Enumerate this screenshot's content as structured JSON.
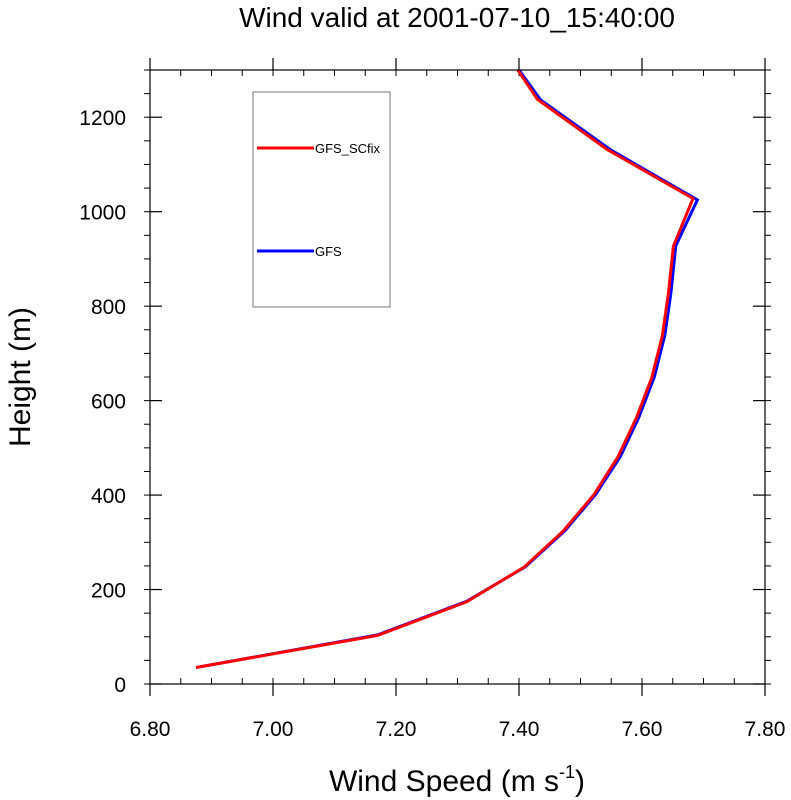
{
  "chart_data": {
    "type": "line",
    "title": "Wind valid at 2001-07-10_15:40:00",
    "xlabel": "Wind Speed (m s",
    "xlabel_sup": "-1",
    "xlabel_tail": ")",
    "ylabel": "Height (m)",
    "xlim": [
      6.8,
      7.8
    ],
    "ylim": [
      0,
      1300
    ],
    "xticks": [
      6.8,
      7.0,
      7.2,
      7.4,
      7.6,
      7.8
    ],
    "xtick_labels": [
      "6.80",
      "7.00",
      "7.20",
      "7.40",
      "7.60",
      "7.80"
    ],
    "yticks": [
      0,
      200,
      400,
      600,
      800,
      1000,
      1200
    ],
    "ytick_labels": [
      "0",
      "200",
      "400",
      "600",
      "800",
      "1000",
      "1200"
    ],
    "legend_position": "top-left",
    "grid": false,
    "series": [
      {
        "name": "GFS",
        "color": "#0000ff",
        "points": [
          [
            6.875,
            35
          ],
          [
            7.17,
            104
          ],
          [
            7.315,
            175
          ],
          [
            7.41,
            248
          ],
          [
            7.475,
            325
          ],
          [
            7.525,
            402
          ],
          [
            7.565,
            482
          ],
          [
            7.595,
            565
          ],
          [
            7.62,
            650
          ],
          [
            7.637,
            738
          ],
          [
            7.647,
            828
          ],
          [
            7.655,
            928
          ],
          [
            7.69,
            1025
          ],
          [
            7.55,
            1130
          ],
          [
            7.435,
            1237
          ],
          [
            7.4,
            1300
          ]
        ]
      },
      {
        "name": "GFS_SCfix",
        "color": "#ff0000",
        "points": [
          [
            6.875,
            35
          ],
          [
            7.17,
            103
          ],
          [
            7.315,
            174
          ],
          [
            7.408,
            247
          ],
          [
            7.472,
            324
          ],
          [
            7.522,
            401
          ],
          [
            7.561,
            481
          ],
          [
            7.591,
            564
          ],
          [
            7.616,
            649
          ],
          [
            7.633,
            737
          ],
          [
            7.643,
            827
          ],
          [
            7.651,
            927
          ],
          [
            7.683,
            1028
          ],
          [
            7.543,
            1132
          ],
          [
            7.43,
            1238
          ],
          [
            7.398,
            1300
          ]
        ]
      }
    ]
  },
  "legend": {
    "items": [
      {
        "label": "GFS_SCfix",
        "color": "#ff0000"
      },
      {
        "label": "GFS",
        "color": "#0000ff"
      }
    ]
  }
}
